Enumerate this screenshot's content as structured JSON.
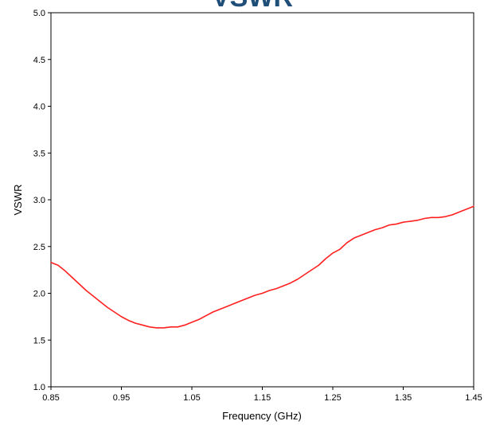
{
  "chart_data": {
    "type": "line",
    "title": "VSWR",
    "xlabel": "Frequency (GHz)",
    "ylabel": "VSWR",
    "xlim": [
      0.85,
      1.45
    ],
    "ylim": [
      1.0,
      5.0
    ],
    "grid": false,
    "x_ticks": [
      "0.85",
      "0.95",
      "1.05",
      "1.15",
      "1.25",
      "1.35",
      "1.45"
    ],
    "y_ticks": [
      "1.0",
      "1.5",
      "2.0",
      "2.5",
      "3.0",
      "3.5",
      "4.0",
      "4.5",
      "5.0"
    ],
    "series": [
      {
        "color": "#ff2020",
        "x": [
          0.85,
          0.86,
          0.87,
          0.88,
          0.89,
          0.9,
          0.91,
          0.92,
          0.93,
          0.94,
          0.95,
          0.96,
          0.97,
          0.98,
          0.99,
          1.0,
          1.01,
          1.02,
          1.03,
          1.04,
          1.05,
          1.06,
          1.07,
          1.08,
          1.09,
          1.1,
          1.11,
          1.12,
          1.13,
          1.14,
          1.15,
          1.16,
          1.17,
          1.18,
          1.19,
          1.2,
          1.21,
          1.22,
          1.23,
          1.24,
          1.25,
          1.26,
          1.27,
          1.28,
          1.29,
          1.3,
          1.31,
          1.32,
          1.33,
          1.34,
          1.35,
          1.36,
          1.37,
          1.38,
          1.39,
          1.4,
          1.41,
          1.42,
          1.43,
          1.44,
          1.45
        ],
        "y": [
          2.33,
          2.3,
          2.24,
          2.17,
          2.1,
          2.03,
          1.97,
          1.91,
          1.85,
          1.8,
          1.75,
          1.71,
          1.68,
          1.66,
          1.64,
          1.63,
          1.63,
          1.64,
          1.64,
          1.66,
          1.69,
          1.72,
          1.76,
          1.8,
          1.83,
          1.86,
          1.89,
          1.92,
          1.95,
          1.98,
          2.0,
          2.03,
          2.05,
          2.08,
          2.11,
          2.15,
          2.2,
          2.25,
          2.3,
          2.37,
          2.43,
          2.47,
          2.54,
          2.59,
          2.62,
          2.65,
          2.68,
          2.7,
          2.73,
          2.74,
          2.76,
          2.77,
          2.78,
          2.8,
          2.81,
          2.81,
          2.82,
          2.84,
          2.87,
          2.9,
          2.93
        ]
      }
    ]
  }
}
